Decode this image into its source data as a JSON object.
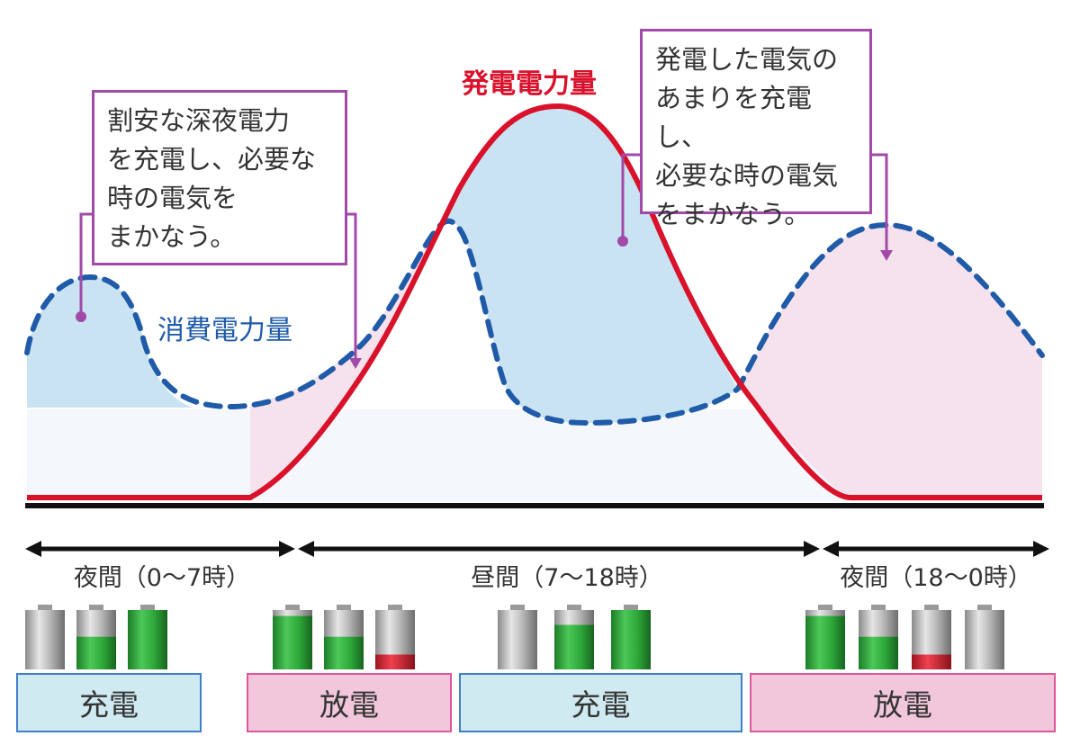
{
  "chart_data": {
    "type": "area",
    "series": [
      {
        "name": "発電電力量",
        "color": "#d9112b"
      },
      {
        "name": "消費電力量",
        "color": "#1f5ba8"
      }
    ],
    "annotations": [
      "割安な深夜電力\nを充電し、必要な\n時の電気を\nまかなう。",
      "発電した電気の\nあまりを充電し、\n必要な時の電気\nをまかなう。"
    ]
  },
  "labels": {
    "generation": "発電電力量",
    "consumption": "消費電力量"
  },
  "notes": {
    "night": "割安な深夜電力\nを充電し、必要な\n時の電気を\nまかなう。",
    "day": "発電した電気の\nあまりを充電し、\n必要な時の電気\nをまかなう。"
  },
  "periods": [
    {
      "label": "夜間（0〜7時）"
    },
    {
      "label": "昼間（7〜18時）"
    },
    {
      "label": "夜間（18〜0時）"
    }
  ],
  "modes": [
    {
      "label": "充電",
      "kind": "charge"
    },
    {
      "label": "放電",
      "kind": "discharge"
    },
    {
      "label": "充電",
      "kind": "charge"
    },
    {
      "label": "放電",
      "kind": "discharge"
    }
  ],
  "battery_levels": [
    [
      0.0,
      0.55,
      1.0
    ],
    [
      0.9,
      0.55,
      0.25
    ],
    [
      0.0,
      0.75,
      1.0
    ],
    [
      0.9,
      0.55,
      0.25,
      0.0
    ]
  ],
  "colors": {
    "generation": "#d9112b",
    "consumption": "#1f5ba8",
    "surplus_fill": "#c9e3f2",
    "deficit_fill": "#f6e2ec",
    "base_fill": "#f4f7fb",
    "note_border": "#a24aa8",
    "charge_bg": "#cfeaf0",
    "charge_border": "#3f7fcc",
    "discharge_bg": "#f2c7dc",
    "discharge_border": "#e0569a",
    "battery_green": "#2faa3a",
    "battery_red": "#d92a36"
  }
}
